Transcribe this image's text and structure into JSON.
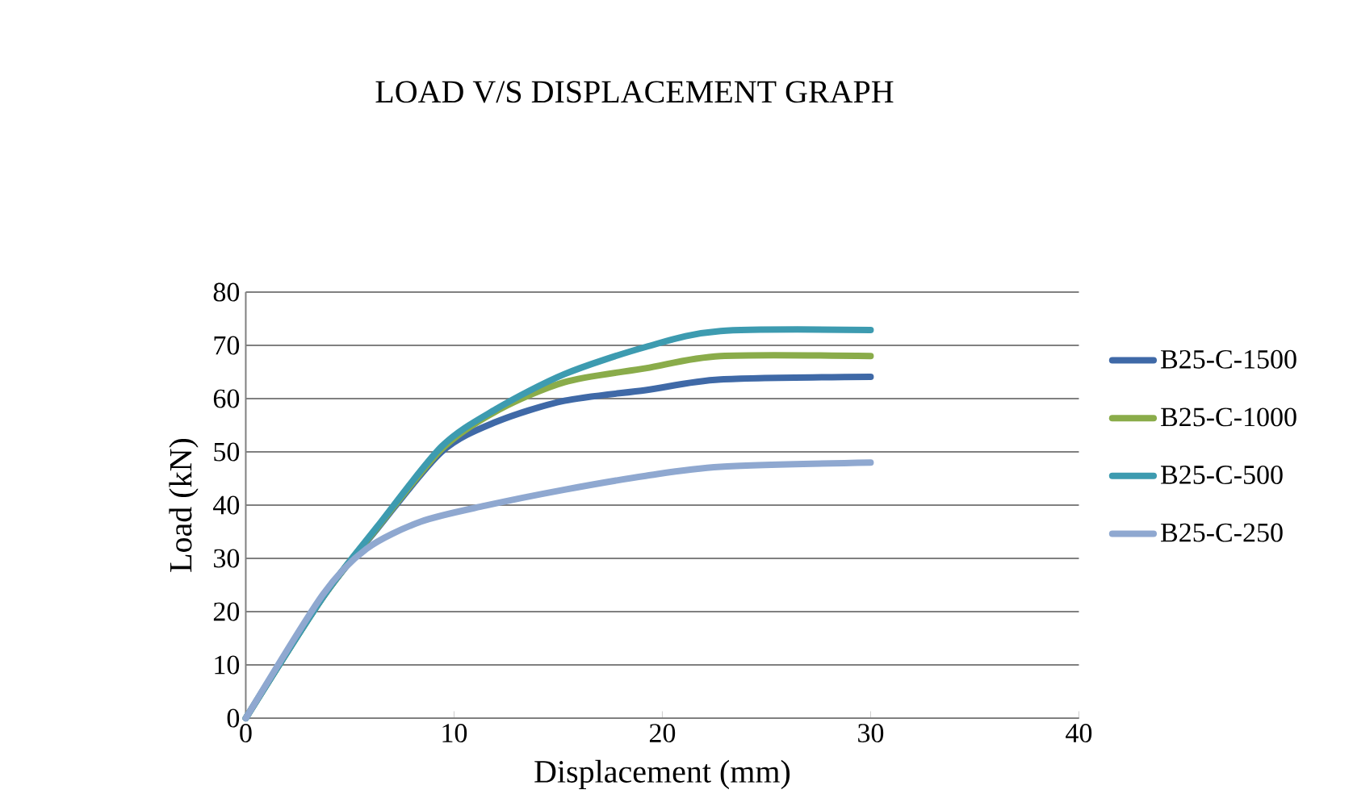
{
  "chart_data": {
    "type": "line",
    "title": "LOAD V/S DISPLACEMENT GRAPH",
    "xlabel": "Displacement (mm)",
    "ylabel": "Load (kN)",
    "xlim": [
      0,
      40
    ],
    "xticks": [
      0,
      10,
      20,
      30,
      40
    ],
    "ylim": [
      0,
      80
    ],
    "yticks": [
      0,
      10,
      20,
      30,
      40,
      50,
      60,
      70,
      80
    ],
    "grid": "y",
    "legend": "right",
    "marker": "none",
    "line_style": "solid",
    "series": [
      {
        "name": "B25-C-1500",
        "color": "#3f69a7",
        "x": [
          0,
          3.7,
          6.3,
          9.4,
          12,
          15.3,
          19.2,
          22.8,
          30
        ],
        "values": [
          0,
          22.7,
          35.5,
          50,
          55.6,
          59.6,
          61.6,
          63.6,
          64.1
        ]
      },
      {
        "name": "B25-C-1000",
        "color": "#8aac4a",
        "x": [
          0,
          3.7,
          6.3,
          9.4,
          12,
          15.3,
          19.2,
          22.8,
          30
        ],
        "values": [
          0,
          22.7,
          35.7,
          50.5,
          57.6,
          63.1,
          65.7,
          68,
          68
        ]
      },
      {
        "name": "B25-C-500",
        "color": "#3d9bb0",
        "x": [
          0,
          3.7,
          6.3,
          9.4,
          12,
          15.3,
          19.2,
          22.8,
          30
        ],
        "values": [
          0,
          22.7,
          35.9,
          51,
          58,
          64.6,
          69.7,
          72.7,
          72.9
        ]
      },
      {
        "name": "B25-C-250",
        "color": "#8fa8d0",
        "x": [
          0,
          3.7,
          5.8,
          8.4,
          11.5,
          15.3,
          19.2,
          22.8,
          30
        ],
        "values": [
          0,
          23.2,
          31.8,
          36.9,
          39.9,
          42.9,
          45.5,
          47.2,
          48
        ]
      }
    ]
  }
}
